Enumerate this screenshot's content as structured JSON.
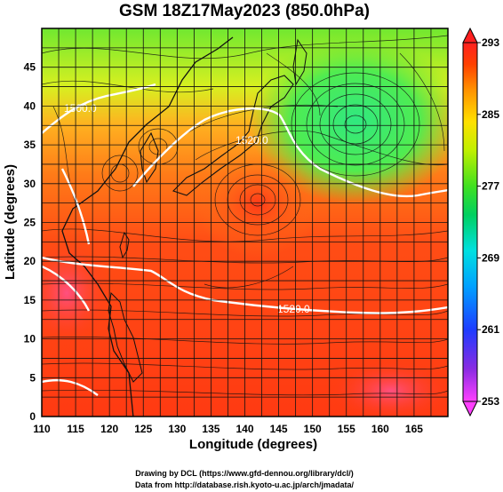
{
  "title": "GSM 18Z17May2023 (850.0hPa)",
  "x_axis": {
    "label": "Longitude (degrees)",
    "range": [
      110,
      170
    ],
    "ticks": [
      "110",
      "115",
      "120",
      "125",
      "130",
      "135",
      "140",
      "145",
      "150",
      "155",
      "160",
      "165"
    ]
  },
  "y_axis": {
    "label": "Latitude  (degrees)",
    "range": [
      0,
      50
    ],
    "ticks": [
      "0",
      "5",
      "10",
      "15",
      "20",
      "25",
      "30",
      "35",
      "40",
      "45"
    ]
  },
  "colorbar": {
    "range": [
      253,
      293
    ],
    "ticks": [
      "293",
      "285",
      "277",
      "269",
      "261",
      "253"
    ],
    "colors": [
      "#ff40ff",
      "#8a2be2",
      "#1e3cff",
      "#00a0ff",
      "#00e0e0",
      "#00d060",
      "#40e020",
      "#c0f000",
      "#ffe000",
      "#ff9000",
      "#ff4000",
      "#ff2020"
    ]
  },
  "contours": [
    {
      "label": "1500.0"
    },
    {
      "label": "1520.0"
    },
    {
      "label": "1520.0"
    }
  ],
  "credits": {
    "line1": "Drawing by DCL (https://www.gfd-dennou.org/library/dcl/)",
    "line2": "Data from http://database.rish.kyoto-u.ac.jp/arch/jmadata/"
  },
  "chart_data": {
    "type": "heatmap",
    "title": "GSM 18Z17May2023 (850.0hPa)",
    "xlabel": "Longitude (degrees)",
    "ylabel": "Latitude  (degrees)",
    "xlim": [
      110,
      170
    ],
    "ylim": [
      0,
      50
    ],
    "colorbar_range": [
      253,
      293
    ],
    "grid": true,
    "contour_labels": [
      "1500.0",
      "1520.0",
      "1520.0"
    ]
  }
}
